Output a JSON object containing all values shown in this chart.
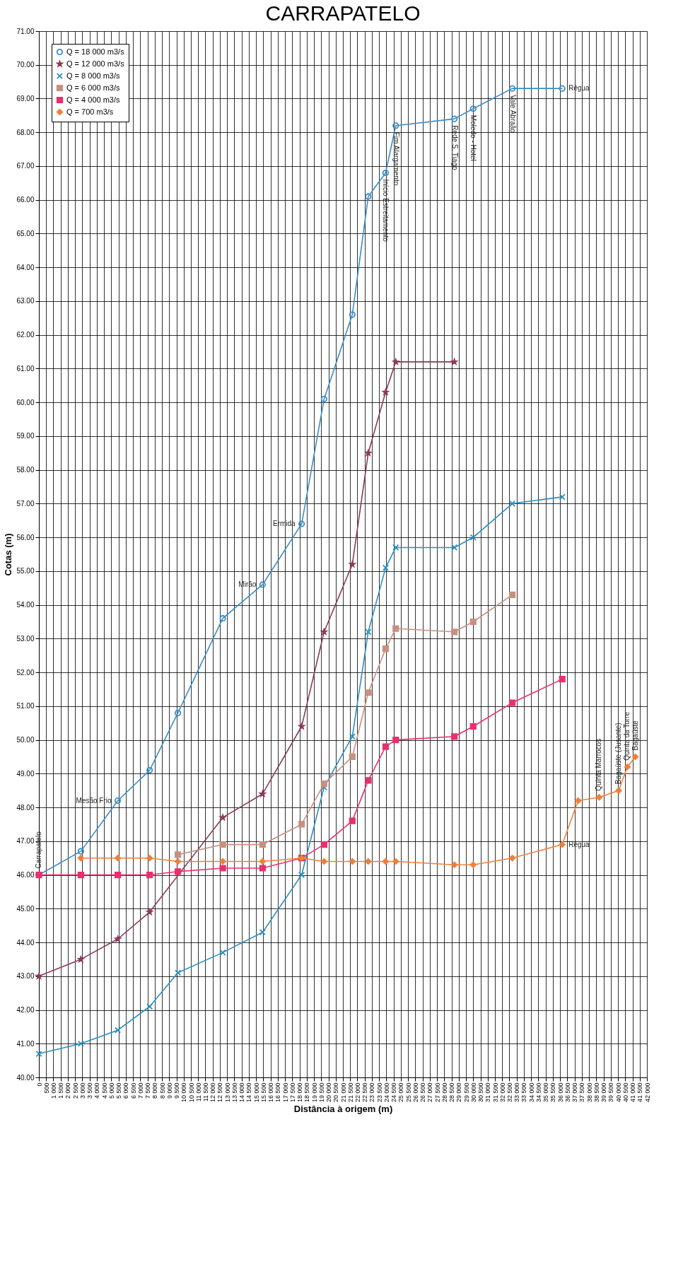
{
  "chart_data": {
    "type": "line",
    "title": "CARRAPATELO",
    "xlabel": "Distância à origem (m)",
    "ylabel": "Cotas (m)",
    "x": [
      0,
      2900,
      5450,
      7650,
      9600,
      12700,
      15450,
      18150,
      19700,
      21650,
      22750,
      23950,
      24650,
      28700,
      30000,
      32700,
      36150,
      37250,
      38700,
      40050,
      40650,
      41200
    ],
    "series": [
      {
        "name": "Q = 18 000 m3/s",
        "color": "#3a8dc8",
        "marker": "circle",
        "values": [
          46.0,
          46.7,
          48.2,
          49.1,
          50.8,
          53.6,
          54.6,
          56.4,
          60.1,
          62.6,
          66.1,
          66.8,
          68.2,
          68.4,
          68.7,
          69.3,
          69.3,
          null,
          null,
          null,
          null,
          null
        ]
      },
      {
        "name": "Q = 12 000 m3/s",
        "color": "#8b3a5a",
        "marker": "star",
        "values": [
          43.0,
          43.5,
          44.1,
          44.9,
          null,
          47.7,
          48.4,
          50.4,
          53.2,
          55.2,
          58.5,
          60.3,
          61.2,
          61.2,
          null,
          null,
          null,
          null,
          null,
          null,
          null,
          null
        ]
      },
      {
        "name": "Q = 8 000 m3/s",
        "color": "#2a8fc0",
        "marker": "cross",
        "values": [
          40.7,
          41.0,
          41.4,
          42.1,
          43.1,
          43.7,
          44.3,
          46.0,
          48.6,
          50.1,
          53.2,
          55.1,
          55.7,
          55.7,
          56.0,
          57.0,
          57.2,
          null,
          null,
          null,
          null,
          null
        ]
      },
      {
        "name": "Q = 6 000 m3/s",
        "color": "#c8907f",
        "marker": "square",
        "values": [
          null,
          null,
          null,
          null,
          46.6,
          46.9,
          46.9,
          47.5,
          48.7,
          49.5,
          51.4,
          52.7,
          53.3,
          53.2,
          53.5,
          54.3,
          null,
          null,
          null,
          null,
          null,
          null
        ]
      },
      {
        "name": "Q = 4 000 m3/s",
        "color": "#e8306e",
        "marker": "square",
        "values": [
          46.0,
          46.0,
          46.0,
          46.0,
          46.1,
          46.2,
          46.2,
          46.5,
          46.9,
          47.6,
          48.8,
          49.8,
          50.0,
          50.1,
          50.4,
          51.1,
          51.8,
          null,
          null,
          null,
          null,
          null
        ]
      },
      {
        "name": "Q = 700 m3/s",
        "color": "#f07f3a",
        "marker": "diamond",
        "values": [
          null,
          46.5,
          46.5,
          46.5,
          46.4,
          46.4,
          46.4,
          46.5,
          46.4,
          46.4,
          46.4,
          46.4,
          46.4,
          46.3,
          46.3,
          46.5,
          46.9,
          48.2,
          48.3,
          48.5,
          49.2,
          49.5
        ]
      }
    ],
    "annotations": [
      {
        "text": "Carrapatelo",
        "x": 0,
        "y": 46.0
      },
      {
        "text": "Mesão Frio",
        "x": 5450,
        "y": 48.2
      },
      {
        "text": "Mirão",
        "x": 15450,
        "y": 54.6
      },
      {
        "text": "Ermida",
        "x": 18150,
        "y": 56.4
      },
      {
        "text": "Início Estreitamento",
        "x": 23950,
        "y": 66.8
      },
      {
        "text": "Fim Alargamento",
        "x": 24650,
        "y": 68.2
      },
      {
        "text": "Rede S. Tiago",
        "x": 28700,
        "y": 68.4
      },
      {
        "text": "Moledo - Hotel",
        "x": 30000,
        "y": 68.7
      },
      {
        "text": "Vale Abraão",
        "x": 32700,
        "y": 69.3
      },
      {
        "text": "Régua",
        "x": 36150,
        "y": 69.3
      },
      {
        "text": "Régua",
        "x": 36150,
        "y": 46.9
      },
      {
        "text": "Quinta Marrocos",
        "x": 38700,
        "y": 48.3
      },
      {
        "text": "Bagaúste (Jusante)",
        "x": 40050,
        "y": 48.5
      },
      {
        "text": "Quinta da Torre",
        "x": 40650,
        "y": 49.2
      },
      {
        "text": "Bagaúste",
        "x": 41200,
        "y": 49.5
      }
    ],
    "xlim": [
      0,
      42000
    ],
    "xticks": [
      0,
      500,
      {
        "value": 1000,
        "label": "1 000"
      },
      {
        "value": 1500,
        "label": "1 500"
      },
      {
        "value": 2000,
        "label": "2 000"
      },
      {
        "value": 2500,
        "label": "2 500"
      },
      {
        "value": 3000,
        "label": "3 000"
      },
      {
        "value": 3500,
        "label": "3 500"
      },
      {
        "value": 4000,
        "label": "4 000"
      },
      {
        "value": 4500,
        "label": "4 500"
      },
      {
        "value": 5000,
        "label": "5 000"
      },
      {
        "value": 5500,
        "label": "5 500"
      },
      {
        "value": 6000,
        "label": "6 000"
      },
      {
        "value": 6500,
        "label": "6 500"
      },
      {
        "value": 7000,
        "label": "7 000"
      },
      {
        "value": 7500,
        "label": "7 500"
      },
      {
        "value": 8000,
        "label": "8 000"
      },
      {
        "value": 8500,
        "label": "8 500"
      },
      {
        "value": 9000,
        "label": "9 000"
      },
      {
        "value": 9500,
        "label": "9 500"
      },
      {
        "value": 10000,
        "label": "10 000"
      },
      {
        "value": 10500,
        "label": "10 500"
      },
      {
        "value": 11000,
        "label": "11 000"
      },
      {
        "value": 11500,
        "label": "11 500"
      },
      {
        "value": 12000,
        "label": "12 000"
      },
      {
        "value": 12500,
        "label": "12 500"
      },
      {
        "value": 13000,
        "label": "13 000"
      },
      {
        "value": 13500,
        "label": "13 500"
      },
      {
        "value": 14000,
        "label": "14 000"
      },
      {
        "value": 14500,
        "label": "14 500"
      },
      {
        "value": 15000,
        "label": "15 000"
      },
      {
        "value": 15500,
        "label": "15 500"
      },
      {
        "value": 16000,
        "label": "16 000"
      },
      {
        "value": 16500,
        "label": "16 500"
      },
      {
        "value": 17000,
        "label": "17 000"
      },
      {
        "value": 17500,
        "label": "17 500"
      },
      {
        "value": 18000,
        "label": "18 000"
      },
      {
        "value": 18500,
        "label": "18 500"
      },
      {
        "value": 19000,
        "label": "19 000"
      },
      {
        "value": 19500,
        "label": "19 500"
      },
      {
        "value": 20000,
        "label": "20 000"
      },
      {
        "value": 20500,
        "label": "20 500"
      },
      {
        "value": 21000,
        "label": "21 000"
      },
      {
        "value": 21500,
        "label": "21 500"
      },
      {
        "value": 22000,
        "label": "22 000"
      },
      {
        "value": 22500,
        "label": "22 500"
      },
      {
        "value": 23000,
        "label": "23 000"
      },
      {
        "value": 23500,
        "label": "23 500"
      },
      {
        "value": 24000,
        "label": "24 000"
      },
      {
        "value": 24500,
        "label": "24 500"
      },
      {
        "value": 25000,
        "label": "25 000"
      },
      {
        "value": 25500,
        "label": "25 500"
      },
      {
        "value": 26000,
        "label": "26 000"
      },
      {
        "value": 26500,
        "label": "26 500"
      },
      {
        "value": 27000,
        "label": "27 000"
      },
      {
        "value": 27500,
        "label": "27 500"
      },
      {
        "value": 28000,
        "label": "28 000"
      },
      {
        "value": 28500,
        "label": "28 500"
      },
      {
        "value": 29000,
        "label": "29 000"
      },
      {
        "value": 29500,
        "label": "29 500"
      },
      {
        "value": 30000,
        "label": "30 000"
      },
      {
        "value": 30500,
        "label": "30 500"
      },
      {
        "value": 31000,
        "label": "31 000"
      },
      {
        "value": 31500,
        "label": "31 500"
      },
      {
        "value": 32000,
        "label": "32 000"
      },
      {
        "value": 32500,
        "label": "32 500"
      },
      {
        "value": 33000,
        "label": "33 000"
      },
      {
        "value": 33500,
        "label": "33 500"
      },
      {
        "value": 34000,
        "label": "34 000"
      },
      {
        "value": 34500,
        "label": "34 500"
      },
      {
        "value": 35000,
        "label": "35 000"
      },
      {
        "value": 35500,
        "label": "35 500"
      },
      {
        "value": 36000,
        "label": "36 000"
      },
      {
        "value": 36500,
        "label": "36 500"
      },
      {
        "value": 37000,
        "label": "37 000"
      },
      {
        "value": 37500,
        "label": "37 500"
      },
      {
        "value": 38000,
        "label": "38 000"
      },
      {
        "value": 38500,
        "label": "38 500"
      },
      {
        "value": 39000,
        "label": "39 000"
      },
      {
        "value": 39500,
        "label": "39 500"
      },
      {
        "value": 40000,
        "label": "40 000"
      },
      {
        "value": 40500,
        "label": "40 500"
      },
      {
        "value": 41000,
        "label": "41 000"
      },
      {
        "value": 41500,
        "label": "41 500"
      },
      {
        "value": 42000,
        "label": "42 000"
      }
    ],
    "ylim": [
      40,
      71
    ],
    "yticks": [
      {
        "value": 40,
        "label": "40.00"
      },
      {
        "value": 41,
        "label": "41.00"
      },
      {
        "value": 42,
        "label": "42.00"
      },
      {
        "value": 43,
        "label": "43.00"
      },
      {
        "value": 44,
        "label": "44.00"
      },
      {
        "value": 45,
        "label": "45.00"
      },
      {
        "value": 46,
        "label": "46.00"
      },
      {
        "value": 47,
        "label": "47.00"
      },
      {
        "value": 48,
        "label": "48.00"
      },
      {
        "value": 49,
        "label": "49.00"
      },
      {
        "value": 50,
        "label": "50.00"
      },
      {
        "value": 51,
        "label": "51.00"
      },
      {
        "value": 52,
        "label": "52.00"
      },
      {
        "value": 53,
        "label": "53.00"
      },
      {
        "value": 54,
        "label": "54.00"
      },
      {
        "value": 55,
        "label": "55.00"
      },
      {
        "value": 56,
        "label": "56.00"
      },
      {
        "value": 57,
        "label": "57.00"
      },
      {
        "value": 58,
        "label": "58.00"
      },
      {
        "value": 59,
        "label": "59.00"
      },
      {
        "value": 60,
        "label": "60.00"
      },
      {
        "value": 61,
        "label": "61.00"
      },
      {
        "value": 62,
        "label": "62.00"
      },
      {
        "value": 63,
        "label": "63.00"
      },
      {
        "value": 64,
        "label": "64.00"
      },
      {
        "value": 65,
        "label": "65.00"
      },
      {
        "value": 66,
        "label": "66.00"
      },
      {
        "value": 67,
        "label": "67.00"
      },
      {
        "value": 68,
        "label": "68.00"
      },
      {
        "value": 69,
        "label": "69.00"
      },
      {
        "value": 70,
        "label": "70.00"
      },
      {
        "value": 71,
        "label": "71.00"
      }
    ],
    "grid": true,
    "legend": "top left",
    "line_style": "solid"
  }
}
